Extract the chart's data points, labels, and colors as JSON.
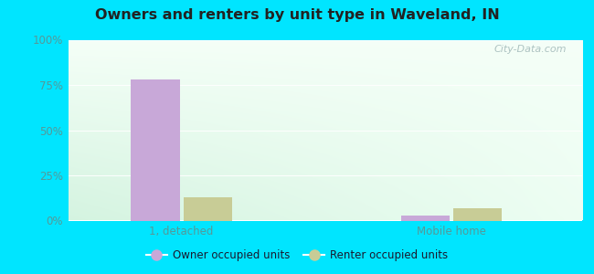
{
  "title": "Owners and renters by unit type in Waveland, IN",
  "categories": [
    "1, detached",
    "Mobile home"
  ],
  "owner_values": [
    78.0,
    3.0
  ],
  "renter_values": [
    13.0,
    7.0
  ],
  "owner_color": "#c8a8d8",
  "renter_color": "#c8cc96",
  "ylim": [
    0,
    100
  ],
  "yticks": [
    0,
    25,
    50,
    75,
    100
  ],
  "ytick_labels": [
    "0%",
    "25%",
    "50%",
    "75%",
    "100%"
  ],
  "background_outer": "#00e5ff",
  "legend_owner": "Owner occupied units",
  "legend_renter": "Renter occupied units",
  "bar_width": 0.28,
  "watermark": "City-Data.com",
  "plot_bg_left": "#d8f0d8",
  "plot_bg_right": "#eafaf0",
  "plot_bg_top": "#f0faf5",
  "tick_color": "#559999",
  "title_color": "#222222"
}
